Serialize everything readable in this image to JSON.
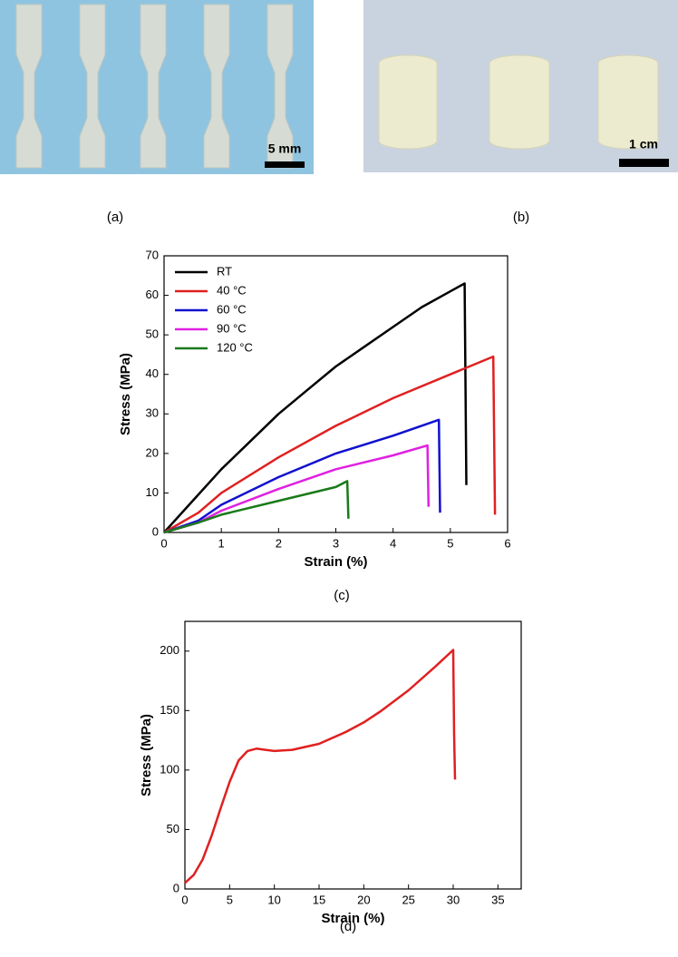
{
  "panels": {
    "a": "(a)",
    "b": "(b)",
    "c": "(c)",
    "d": "(d)"
  },
  "photos": {
    "a_scale": "5 mm",
    "b_scale": "1 cm"
  },
  "chart_data": [
    {
      "type": "line",
      "xlabel": "Strain (%)",
      "ylabel": "Stress (MPa)",
      "xlim": [
        0,
        6
      ],
      "xticks": [
        0,
        1,
        2,
        3,
        4,
        5,
        6
      ],
      "ylim": [
        0,
        70
      ],
      "yticks": [
        0,
        10,
        20,
        30,
        40,
        50,
        60,
        70
      ],
      "legend": "upper left",
      "series": [
        {
          "name": "RT",
          "color": "#000000",
          "x": [
            0,
            0.5,
            1,
            1.5,
            2,
            2.5,
            3,
            3.5,
            4,
            4.5,
            5,
            5.25,
            5.28
          ],
          "values": [
            0,
            8,
            16,
            23,
            30,
            36,
            42,
            47,
            52,
            57,
            61,
            63,
            12
          ]
        },
        {
          "name": "40 °C",
          "color": "#e02020",
          "x": [
            0,
            0.6,
            1,
            2,
            3,
            4,
            5,
            5.75,
            5.78
          ],
          "values": [
            0,
            5,
            10,
            19,
            27,
            34,
            40,
            44.5,
            4.5
          ]
        },
        {
          "name": "60 °C",
          "color": "#1010d0",
          "x": [
            0,
            0.6,
            1,
            2,
            3,
            4,
            4.8,
            4.82
          ],
          "values": [
            0,
            3,
            7,
            14,
            20,
            24.5,
            28.5,
            5
          ]
        },
        {
          "name": "90 °C",
          "color": "#e020e0",
          "x": [
            0,
            0.6,
            1,
            2,
            3,
            4,
            4.6,
            4.62
          ],
          "values": [
            0,
            2.5,
            5.5,
            11,
            16,
            19.5,
            22,
            6.5
          ]
        },
        {
          "name": "120 °C",
          "color": "#1a7a1a",
          "x": [
            0,
            0.6,
            1,
            2,
            3,
            3.2,
            3.22
          ],
          "values": [
            0,
            2.5,
            4.5,
            8,
            11.5,
            13,
            3.5
          ]
        }
      ]
    },
    {
      "type": "line",
      "xlabel": "Strain (%)",
      "ylabel": "Stress (MPa)",
      "xlim": [
        0,
        37.6
      ],
      "xticks": [
        0,
        5,
        10,
        15,
        20,
        25,
        30,
        35
      ],
      "ylim": [
        0,
        225
      ],
      "yticks": [
        0,
        50,
        100,
        150,
        200
      ],
      "series": [
        {
          "color": "#e02020",
          "x": [
            0,
            1,
            2,
            3,
            4,
            5,
            6,
            7,
            8,
            9,
            10,
            12,
            15,
            18,
            20,
            22,
            25,
            28,
            30,
            30.1,
            30.2
          ],
          "values": [
            5,
            12,
            25,
            45,
            68,
            90,
            108,
            116,
            118,
            117,
            116,
            117,
            122,
            132,
            140,
            150,
            167,
            187,
            201,
            130,
            92
          ]
        }
      ]
    }
  ]
}
